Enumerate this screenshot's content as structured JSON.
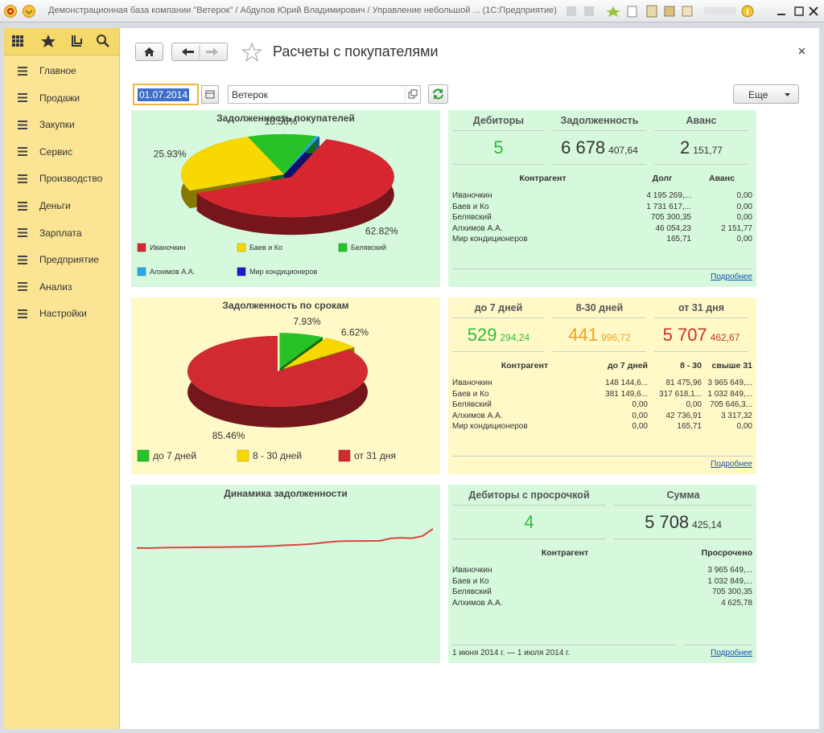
{
  "window": {
    "title": "Демонстрационная база компании \"Ветерок\" / Абдулов Юрий Владимирович / Управление небольшой ...  (1С:Предприятие)"
  },
  "sidebar": {
    "items": [
      "Главное",
      "Продажи",
      "Закупки",
      "Сервис",
      "Производство",
      "Деньги",
      "Зарплата",
      "Предприятие",
      "Анализ",
      "Настройки"
    ]
  },
  "header": {
    "title": "Расчеты с покупателями",
    "date": "01.07.2014",
    "company": "Ветерок",
    "more": "Еще"
  },
  "debt_chart": {
    "type": "pie",
    "title": "Задолженность покупателей",
    "categories": [
      "Иваночкин",
      "Баев и Ко",
      "Белявский",
      "Алхимов А.А.",
      "Мир кондиционеров"
    ],
    "values": [
      62.82,
      25.93,
      10.56,
      0.69,
      0.002
    ],
    "value_labels": [
      "62.82%",
      "25.93%",
      "10.56%",
      null,
      null
    ],
    "colors": [
      "#d7262f",
      "#f7d800",
      "#27c227",
      "#2aa9e0",
      "#1c1cc8"
    ]
  },
  "debt_summary": {
    "kpis": [
      {
        "label": "Дебиторы",
        "main": "5",
        "color": "#2bbd3a"
      },
      {
        "label": "Задолженность",
        "main": "6 678",
        "fraction": "407,64",
        "color": "#333333"
      },
      {
        "label": "Аванс",
        "main": "2",
        "fraction": "151,77",
        "color": "#333333"
      }
    ],
    "columns": [
      "Контрагент",
      "Долг",
      "Аванс"
    ],
    "rows": [
      [
        "Иваночкин",
        "4 195 269,...",
        "0,00"
      ],
      [
        "Баев и Ко",
        "1 731 617,...",
        "0,00"
      ],
      [
        "Белявский",
        "705 300,35",
        "0,00"
      ],
      [
        "Алхимов А.А.",
        "46 054,23",
        "2 151,77"
      ],
      [
        "Мир кондиционеров",
        "165,71",
        "0,00"
      ]
    ],
    "link": "Подробнее"
  },
  "aging_chart": {
    "type": "pie",
    "title": "Задолженность по срокам",
    "categories": [
      "до 7 дней",
      "8 - 30 дней",
      "от 31 дня"
    ],
    "values": [
      7.93,
      6.62,
      85.46
    ],
    "value_labels": [
      "7.93%",
      "6.62%",
      "85.46%"
    ],
    "colors": [
      "#27c227",
      "#f7d800",
      "#d22a33"
    ]
  },
  "aging_summary": {
    "kpis": [
      {
        "label": "до 7 дней",
        "main": "529",
        "fraction": "294,24",
        "color": "#2bbd3a"
      },
      {
        "label": "8-30 дней",
        "main": "441",
        "fraction": "996,72",
        "color": "#f0a020"
      },
      {
        "label": "от 31 дня",
        "main": "5 707",
        "fraction": "462,67",
        "color": "#c8312d"
      }
    ],
    "columns": [
      "Контрагент",
      "до 7 дней",
      "8 - 30",
      "свыше 31"
    ],
    "rows": [
      [
        "Иваночкин",
        "148 144,6...",
        "81 475,96",
        "3 965 649,..."
      ],
      [
        "Баев и Ко",
        "381 149,6...",
        "317 618,1...",
        "1 032 849,..."
      ],
      [
        "Белявский",
        "0,00",
        "0,00",
        "705 646,3..."
      ],
      [
        "Алхимов А.А.",
        "0,00",
        "42 736,91",
        "3 317,32"
      ],
      [
        "Мир кондиционеров",
        "0,00",
        "165,71",
        "0,00"
      ]
    ],
    "link": "Подробнее"
  },
  "trend_chart": {
    "type": "line",
    "title": "Динамика задолженности",
    "values": [
      5420,
      5410,
      5430,
      5450,
      5445,
      5460,
      5470,
      5475,
      5480,
      5490,
      5495,
      5510,
      5530,
      5560,
      5600,
      5620,
      5660,
      5720,
      5800,
      5860,
      5880,
      5880,
      5885,
      5890,
      6050,
      6090,
      6060,
      6200,
      6678
    ],
    "color": "#d9463f"
  },
  "overdue_summary": {
    "kpis": [
      {
        "label": "Дебиторы с просрочкой",
        "main": "4",
        "color": "#2bbd3a"
      },
      {
        "label": "Сумма",
        "main": "5 708",
        "fraction": "425,14",
        "color": "#333333"
      }
    ],
    "columns": [
      "Контрагент",
      "Просрочено"
    ],
    "rows": [
      [
        "Иваночкин",
        "3 965 649,..."
      ],
      [
        "Баев и Ко",
        "1 032 849,..."
      ],
      [
        "Белявский",
        "705 300,35"
      ],
      [
        "Алхимов А.А.",
        "4 625,78"
      ]
    ],
    "period": "1 июня 2014 г. — 1 июля 2014 г.",
    "link": "Подробнее"
  }
}
